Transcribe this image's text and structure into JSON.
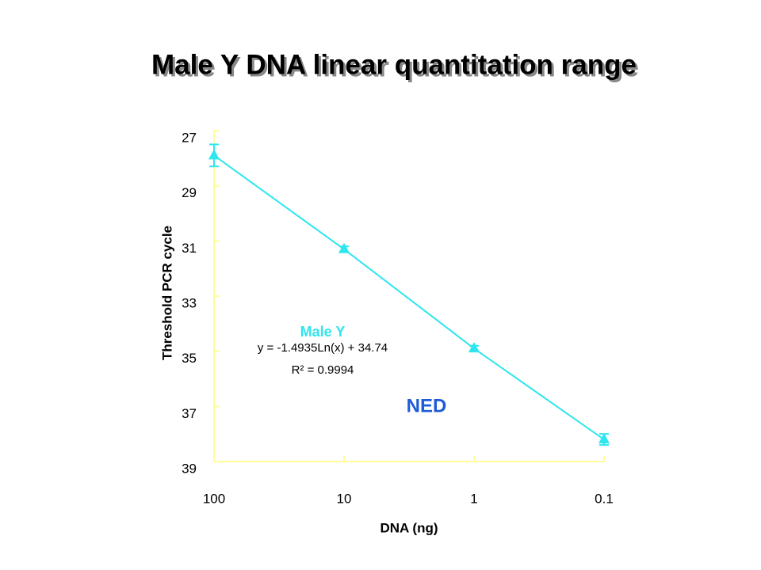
{
  "chart_data": {
    "type": "scatter",
    "title": "Male Y DNA linear quantitation range",
    "xlabel": "DNA (ng)",
    "ylabel": "Threshold PCR cycle",
    "x": [
      100,
      10,
      1,
      0.1
    ],
    "series": [
      {
        "name": "Male Y",
        "color": "#2de6ee",
        "values": [
          27.9,
          31.3,
          34.9,
          38.2
        ],
        "errors": [
          0.4,
          0.1,
          0.1,
          0.2
        ]
      }
    ],
    "xlim": [
      100,
      0.1
    ],
    "xticks": [
      100,
      10,
      1,
      0.1
    ],
    "xscale": "log",
    "ylim": [
      27,
      39
    ],
    "yticks": [
      27,
      29,
      31,
      33,
      35,
      37,
      39
    ],
    "yinverted": true,
    "axis_color": "#ffff99",
    "annotations": [
      {
        "text": "y = -1.4935Ln(x) + 34.74",
        "color": "#000000"
      },
      {
        "text": "R² = 0.9994",
        "color": "#000000"
      },
      {
        "text": "NED",
        "color": "#1e5bd6"
      }
    ]
  }
}
